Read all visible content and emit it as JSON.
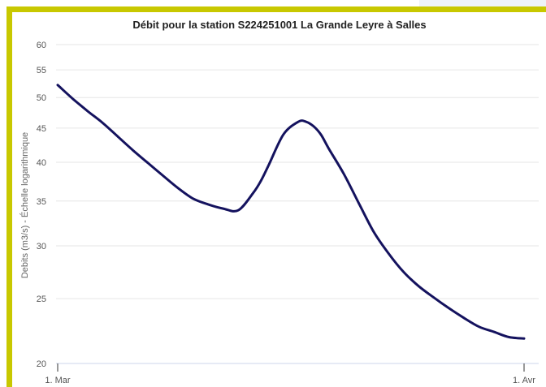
{
  "chart_data": {
    "type": "line",
    "title": "Débit pour la station S224251001 La Grande Leyre à Salles",
    "ylabel": "Debits (m3/s) - Échelle logarithmique",
    "xlabel": "",
    "y_scale": "log",
    "ylim": [
      20,
      60
    ],
    "y_ticks": [
      "20",
      "25",
      "30",
      "35",
      "40",
      "45",
      "50",
      "55",
      "60"
    ],
    "x_ticks": [
      "1. Mar",
      "1. Avr"
    ],
    "xlim": [
      "2024-03-01",
      "2024-04-01"
    ],
    "grid": true,
    "series": [
      {
        "color": "#14125e",
        "x": [
          "2024-03-01",
          "2024-03-02",
          "2024-03-03",
          "2024-03-04",
          "2024-03-05",
          "2024-03-06",
          "2024-03-07",
          "2024-03-08",
          "2024-03-09",
          "2024-03-10",
          "2024-03-11",
          "2024-03-12",
          "2024-03-13",
          "2024-03-14",
          "2024-03-14T12:00",
          "2024-03-15",
          "2024-03-16",
          "2024-03-17",
          "2024-03-17T12:00",
          "2024-03-18",
          "2024-03-18T12:00",
          "2024-03-19",
          "2024-03-20",
          "2024-03-21",
          "2024-03-22",
          "2024-03-23",
          "2024-03-24",
          "2024-03-25",
          "2024-03-26",
          "2024-03-27",
          "2024-03-28",
          "2024-03-29",
          "2024-03-30",
          "2024-03-31",
          "2024-04-01"
        ],
        "y": [
          52.2,
          49.8,
          47.7,
          45.8,
          43.7,
          41.7,
          39.9,
          38.2,
          36.6,
          35.3,
          34.6,
          34.1,
          33.9,
          36.0,
          37.5,
          39.5,
          44.0,
          46.0,
          46.0,
          45.3,
          44.0,
          42.0,
          38.5,
          34.8,
          31.5,
          29.2,
          27.4,
          26.1,
          25.1,
          24.2,
          23.4,
          22.7,
          22.3,
          21.9,
          21.8
        ]
      }
    ]
  }
}
